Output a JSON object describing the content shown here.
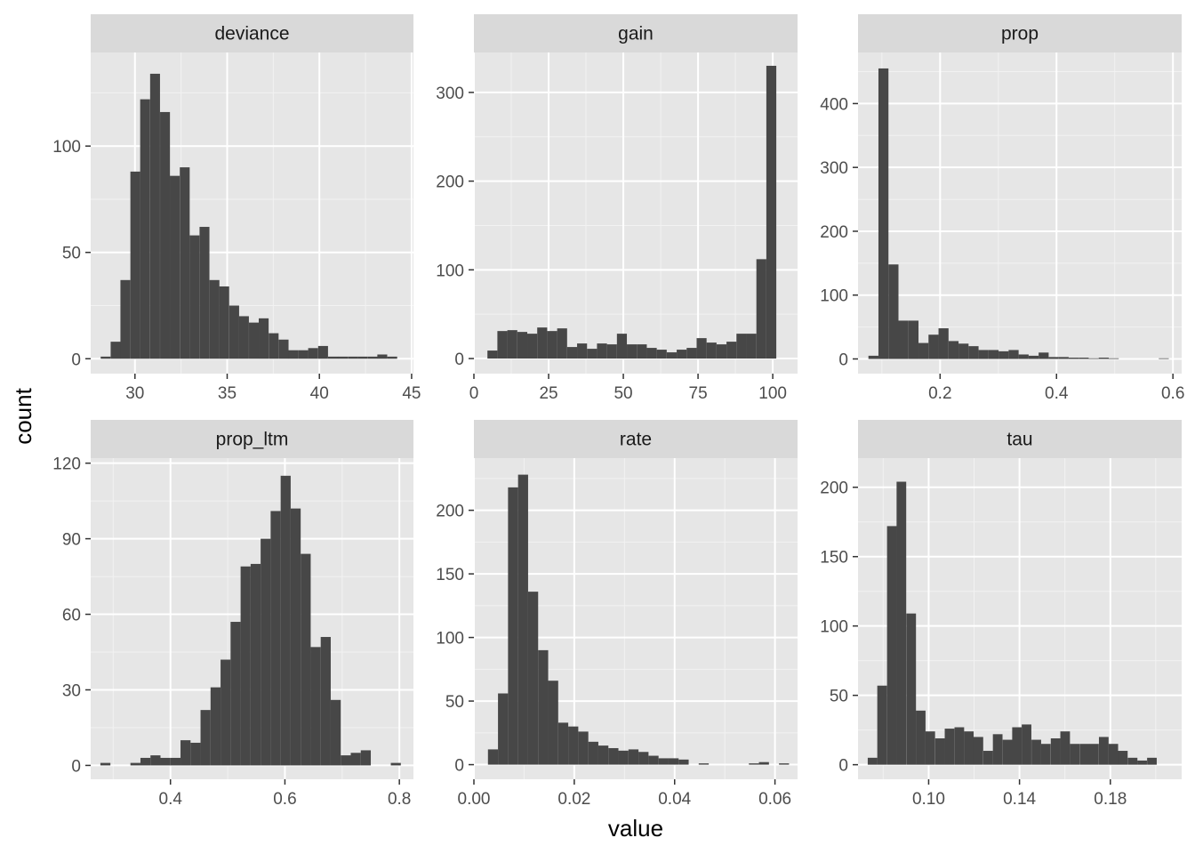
{
  "colors": {
    "panel_background": "#e6e6e6",
    "strip_background": "#d9d9d9",
    "grid_major": "#ffffff",
    "grid_minor": "#f2f2f2",
    "bar_fill": "#474747",
    "tick_color": "#333333"
  },
  "chart_data": {
    "type": "bar",
    "layout": "facet_wrap 2 rows x 3 columns, independent scales",
    "xlabel": "value",
    "ylabel": "count",
    "grid": true,
    "facets": [
      {
        "title": "deviance",
        "xlim": [
          27.6,
          45.1
        ],
        "ylim": [
          -7,
          144
        ],
        "x_ticks": [
          30,
          35,
          40,
          45
        ],
        "x_tick_labels": [
          "30",
          "35",
          "40",
          "45"
        ],
        "y_ticks": [
          0,
          50,
          100
        ],
        "y_tick_labels": [
          "0",
          "50",
          "100"
        ],
        "bin_width": 0.5357,
        "bins": [
          {
            "x": 28.41,
            "count": 1
          },
          {
            "x": 28.95,
            "count": 8
          },
          {
            "x": 29.48,
            "count": 37
          },
          {
            "x": 30.02,
            "count": 88
          },
          {
            "x": 30.55,
            "count": 122
          },
          {
            "x": 31.09,
            "count": 134
          },
          {
            "x": 31.63,
            "count": 116
          },
          {
            "x": 32.16,
            "count": 86
          },
          {
            "x": 32.7,
            "count": 90
          },
          {
            "x": 33.23,
            "count": 58
          },
          {
            "x": 33.77,
            "count": 62
          },
          {
            "x": 34.31,
            "count": 37
          },
          {
            "x": 34.84,
            "count": 34
          },
          {
            "x": 35.38,
            "count": 25
          },
          {
            "x": 35.91,
            "count": 20
          },
          {
            "x": 36.45,
            "count": 17
          },
          {
            "x": 36.98,
            "count": 19
          },
          {
            "x": 37.52,
            "count": 12
          },
          {
            "x": 38.06,
            "count": 9
          },
          {
            "x": 38.59,
            "count": 4
          },
          {
            "x": 39.13,
            "count": 4
          },
          {
            "x": 39.66,
            "count": 5
          },
          {
            "x": 40.2,
            "count": 6
          },
          {
            "x": 40.74,
            "count": 1
          },
          {
            "x": 41.27,
            "count": 1
          },
          {
            "x": 41.81,
            "count": 1
          },
          {
            "x": 42.34,
            "count": 1
          },
          {
            "x": 42.88,
            "count": 1
          },
          {
            "x": 43.41,
            "count": 2
          },
          {
            "x": 43.95,
            "count": 1
          }
        ]
      },
      {
        "title": "gain",
        "xlim": [
          0,
          108.3
        ],
        "ylim": [
          -17,
          345
        ],
        "x_ticks": [
          0,
          25,
          50,
          75,
          100
        ],
        "x_tick_labels": [
          "0",
          "25",
          "50",
          "75",
          "100"
        ],
        "y_ticks": [
          0,
          100,
          200,
          300
        ],
        "y_tick_labels": [
          "0",
          "100",
          "200",
          "300"
        ],
        "bin_width": 3.33,
        "bins": [
          {
            "x": 6.19,
            "count": 9
          },
          {
            "x": 9.52,
            "count": 31
          },
          {
            "x": 12.85,
            "count": 32
          },
          {
            "x": 16.19,
            "count": 30
          },
          {
            "x": 19.52,
            "count": 28
          },
          {
            "x": 22.85,
            "count": 35
          },
          {
            "x": 26.19,
            "count": 31
          },
          {
            "x": 29.52,
            "count": 34
          },
          {
            "x": 32.85,
            "count": 13
          },
          {
            "x": 36.19,
            "count": 17
          },
          {
            "x": 39.52,
            "count": 11
          },
          {
            "x": 42.85,
            "count": 17
          },
          {
            "x": 46.19,
            "count": 16
          },
          {
            "x": 49.52,
            "count": 28
          },
          {
            "x": 52.85,
            "count": 16
          },
          {
            "x": 56.19,
            "count": 16
          },
          {
            "x": 59.52,
            "count": 12
          },
          {
            "x": 62.85,
            "count": 10
          },
          {
            "x": 66.19,
            "count": 7
          },
          {
            "x": 69.52,
            "count": 10
          },
          {
            "x": 72.85,
            "count": 12
          },
          {
            "x": 76.19,
            "count": 23
          },
          {
            "x": 79.52,
            "count": 18
          },
          {
            "x": 82.85,
            "count": 16
          },
          {
            "x": 86.19,
            "count": 19
          },
          {
            "x": 89.52,
            "count": 28
          },
          {
            "x": 92.85,
            "count": 28
          },
          {
            "x": 96.19,
            "count": 112
          },
          {
            "x": 99.52,
            "count": 330
          }
        ]
      },
      {
        "title": "prop",
        "xlim": [
          0.059,
          0.615
        ],
        "ylim": [
          -23,
          480
        ],
        "x_ticks": [
          0.2,
          0.4,
          0.6
        ],
        "x_tick_labels": [
          "0.2",
          "0.4",
          "0.6"
        ],
        "y_ticks": [
          0,
          100,
          200,
          300,
          400
        ],
        "y_tick_labels": [
          "0",
          "100",
          "200",
          "300",
          "400"
        ],
        "bin_width": 0.0172,
        "bins": [
          {
            "x": 0.0855,
            "count": 5
          },
          {
            "x": 0.1027,
            "count": 455
          },
          {
            "x": 0.1199,
            "count": 148
          },
          {
            "x": 0.1371,
            "count": 60
          },
          {
            "x": 0.1543,
            "count": 60
          },
          {
            "x": 0.1715,
            "count": 25
          },
          {
            "x": 0.1887,
            "count": 38
          },
          {
            "x": 0.2059,
            "count": 48
          },
          {
            "x": 0.2231,
            "count": 28
          },
          {
            "x": 0.2403,
            "count": 24
          },
          {
            "x": 0.2575,
            "count": 20
          },
          {
            "x": 0.2747,
            "count": 14
          },
          {
            "x": 0.2919,
            "count": 14
          },
          {
            "x": 0.3091,
            "count": 12
          },
          {
            "x": 0.3263,
            "count": 14
          },
          {
            "x": 0.3435,
            "count": 7
          },
          {
            "x": 0.3607,
            "count": 5
          },
          {
            "x": 0.3779,
            "count": 10
          },
          {
            "x": 0.3951,
            "count": 3
          },
          {
            "x": 0.4123,
            "count": 3
          },
          {
            "x": 0.4295,
            "count": 2
          },
          {
            "x": 0.4467,
            "count": 2
          },
          {
            "x": 0.4639,
            "count": 1
          },
          {
            "x": 0.4811,
            "count": 2
          },
          {
            "x": 0.4983,
            "count": 1
          },
          {
            "x": 0.5155,
            "count": 0
          },
          {
            "x": 0.5327,
            "count": 0
          },
          {
            "x": 0.5499,
            "count": 0
          },
          {
            "x": 0.5671,
            "count": 0
          },
          {
            "x": 0.5843,
            "count": 1
          }
        ]
      },
      {
        "title": "prop_ltm",
        "xlim": [
          0.2606,
          0.8246
        ],
        "ylim": [
          -5.5,
          122
        ],
        "x_ticks": [
          0.4,
          0.6,
          0.8
        ],
        "x_tick_labels": [
          "0.4",
          "0.6",
          "0.8"
        ],
        "y_ticks": [
          0,
          30,
          60,
          90,
          120
        ],
        "y_tick_labels": [
          "0",
          "30",
          "60",
          "90",
          "120"
        ],
        "bin_width": 0.0175,
        "bins": [
          {
            "x": 0.2863,
            "count": 1
          },
          {
            "x": 0.3038,
            "count": 0
          },
          {
            "x": 0.3213,
            "count": 0
          },
          {
            "x": 0.3388,
            "count": 1
          },
          {
            "x": 0.3563,
            "count": 3
          },
          {
            "x": 0.3738,
            "count": 4
          },
          {
            "x": 0.3913,
            "count": 3
          },
          {
            "x": 0.4088,
            "count": 3
          },
          {
            "x": 0.4263,
            "count": 10
          },
          {
            "x": 0.4438,
            "count": 9
          },
          {
            "x": 0.4613,
            "count": 22
          },
          {
            "x": 0.4788,
            "count": 31
          },
          {
            "x": 0.4963,
            "count": 42
          },
          {
            "x": 0.5138,
            "count": 57
          },
          {
            "x": 0.5313,
            "count": 79
          },
          {
            "x": 0.5488,
            "count": 80
          },
          {
            "x": 0.5663,
            "count": 90
          },
          {
            "x": 0.5838,
            "count": 101
          },
          {
            "x": 0.6013,
            "count": 115
          },
          {
            "x": 0.6188,
            "count": 102
          },
          {
            "x": 0.6363,
            "count": 84
          },
          {
            "x": 0.6538,
            "count": 47
          },
          {
            "x": 0.6713,
            "count": 51
          },
          {
            "x": 0.6888,
            "count": 26
          },
          {
            "x": 0.7063,
            "count": 4
          },
          {
            "x": 0.7238,
            "count": 5
          },
          {
            "x": 0.7413,
            "count": 6
          },
          {
            "x": 0.7588,
            "count": 0
          },
          {
            "x": 0.7763,
            "count": 0
          },
          {
            "x": 0.7938,
            "count": 1
          }
        ]
      },
      {
        "title": "rate",
        "xlim": [
          0,
          0.0645
        ],
        "ylim": [
          -11.5,
          241
        ],
        "x_ticks": [
          0.0,
          0.02,
          0.04,
          0.06
        ],
        "x_tick_labels": [
          "0.00",
          "0.02",
          "0.04",
          "0.06"
        ],
        "y_ticks": [
          0,
          50,
          100,
          150,
          200
        ],
        "y_tick_labels": [
          "0",
          "50",
          "100",
          "150",
          "200"
        ],
        "bin_width": 0.002,
        "bins": [
          {
            "x": 0.0038,
            "count": 12
          },
          {
            "x": 0.0058,
            "count": 56
          },
          {
            "x": 0.0078,
            "count": 218
          },
          {
            "x": 0.0098,
            "count": 228
          },
          {
            "x": 0.0118,
            "count": 136
          },
          {
            "x": 0.0138,
            "count": 90
          },
          {
            "x": 0.0158,
            "count": 66
          },
          {
            "x": 0.0178,
            "count": 33
          },
          {
            "x": 0.0198,
            "count": 30
          },
          {
            "x": 0.0218,
            "count": 26
          },
          {
            "x": 0.0238,
            "count": 18
          },
          {
            "x": 0.0258,
            "count": 15
          },
          {
            "x": 0.0278,
            "count": 13
          },
          {
            "x": 0.0298,
            "count": 11
          },
          {
            "x": 0.0318,
            "count": 12
          },
          {
            "x": 0.0338,
            "count": 10
          },
          {
            "x": 0.0358,
            "count": 7
          },
          {
            "x": 0.0378,
            "count": 5
          },
          {
            "x": 0.0398,
            "count": 5
          },
          {
            "x": 0.0418,
            "count": 4
          },
          {
            "x": 0.0438,
            "count": 0
          },
          {
            "x": 0.0458,
            "count": 1
          },
          {
            "x": 0.0478,
            "count": 0
          },
          {
            "x": 0.0498,
            "count": 0
          },
          {
            "x": 0.0518,
            "count": 0
          },
          {
            "x": 0.0538,
            "count": 0
          },
          {
            "x": 0.0558,
            "count": 1
          },
          {
            "x": 0.0578,
            "count": 2
          },
          {
            "x": 0.0598,
            "count": 0
          },
          {
            "x": 0.0618,
            "count": 1
          }
        ]
      },
      {
        "title": "tau",
        "xlim": [
          0.0689,
          0.2114
        ],
        "ylim": [
          -10.5,
          221
        ],
        "x_ticks": [
          0.1,
          0.14,
          0.18
        ],
        "x_tick_labels": [
          "0.10",
          "0.14",
          "0.18"
        ],
        "y_ticks": [
          0,
          50,
          100,
          150,
          200
        ],
        "y_tick_labels": [
          "0",
          "50",
          "100",
          "150",
          "200"
        ],
        "bin_width": 0.00424,
        "bins": [
          {
            "x": 0.0753,
            "count": 5
          },
          {
            "x": 0.0795,
            "count": 57
          },
          {
            "x": 0.0838,
            "count": 172
          },
          {
            "x": 0.088,
            "count": 204
          },
          {
            "x": 0.0923,
            "count": 109
          },
          {
            "x": 0.0965,
            "count": 39
          },
          {
            "x": 0.1007,
            "count": 24
          },
          {
            "x": 0.105,
            "count": 19
          },
          {
            "x": 0.1092,
            "count": 26
          },
          {
            "x": 0.1135,
            "count": 27
          },
          {
            "x": 0.1177,
            "count": 24
          },
          {
            "x": 0.1219,
            "count": 20
          },
          {
            "x": 0.1262,
            "count": 10
          },
          {
            "x": 0.1304,
            "count": 22
          },
          {
            "x": 0.1347,
            "count": 18
          },
          {
            "x": 0.1389,
            "count": 27
          },
          {
            "x": 0.1431,
            "count": 29
          },
          {
            "x": 0.1474,
            "count": 18
          },
          {
            "x": 0.1516,
            "count": 15
          },
          {
            "x": 0.1559,
            "count": 19
          },
          {
            "x": 0.1601,
            "count": 24
          },
          {
            "x": 0.1643,
            "count": 15
          },
          {
            "x": 0.1686,
            "count": 15
          },
          {
            "x": 0.1728,
            "count": 15
          },
          {
            "x": 0.1771,
            "count": 20
          },
          {
            "x": 0.1813,
            "count": 15
          },
          {
            "x": 0.1855,
            "count": 10
          },
          {
            "x": 0.1898,
            "count": 5
          },
          {
            "x": 0.194,
            "count": 3
          },
          {
            "x": 0.1983,
            "count": 5
          }
        ]
      }
    ]
  }
}
